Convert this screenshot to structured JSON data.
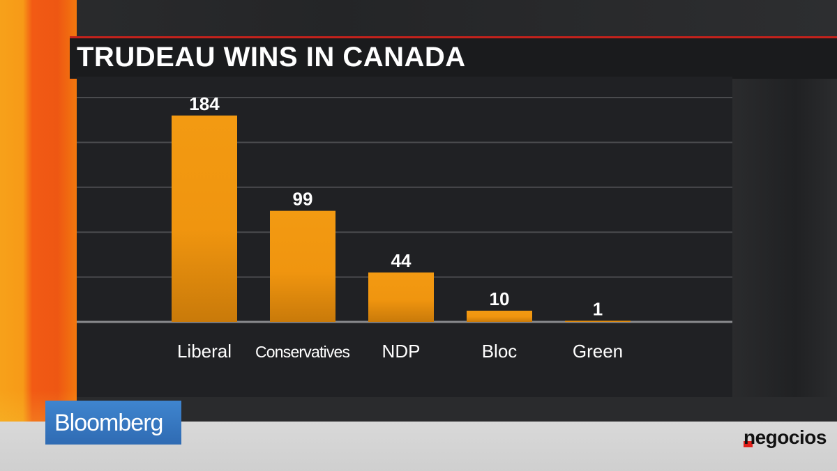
{
  "header": {
    "title": "TRUDEAU WINS IN CANADA"
  },
  "branding": {
    "broadcaster": "Bloomberg",
    "watermark": "negocios"
  },
  "colors": {
    "bar": "#f39a12",
    "accent": "#c4221c",
    "background": "#202124"
  },
  "chart_data": {
    "type": "bar",
    "title": "TRUDEAU WINS IN CANADA",
    "categories": [
      "Liberal",
      "Conservatives",
      "NDP",
      "Bloc",
      "Green"
    ],
    "values": [
      184,
      99,
      44,
      10,
      1
    ],
    "ylim": [
      0,
      200
    ],
    "grid": true,
    "legend": "none"
  }
}
